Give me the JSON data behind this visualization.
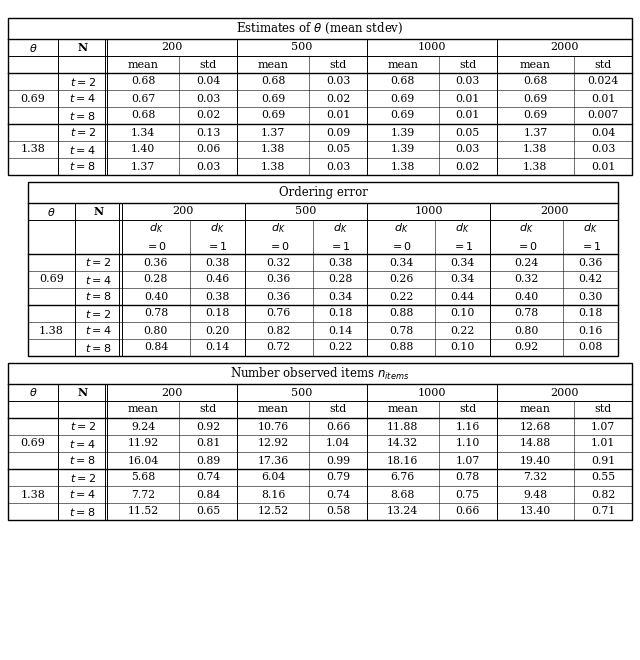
{
  "table1": {
    "title": "Estimates of $\\theta$ (mean stdev)",
    "N_labels": [
      "200",
      "500",
      "1000",
      "2000"
    ],
    "sub_labels": [
      "mean",
      "std"
    ],
    "theta_rows": [
      {
        "theta": "0.69",
        "rows": [
          [
            "$t=2$",
            "0.68",
            "0.04",
            "0.68",
            "0.03",
            "0.68",
            "0.03",
            "0.68",
            "0.024"
          ],
          [
            "$t=4$",
            "0.67",
            "0.03",
            "0.69",
            "0.02",
            "0.69",
            "0.01",
            "0.69",
            "0.01"
          ],
          [
            "$t=8$",
            "0.68",
            "0.02",
            "0.69",
            "0.01",
            "0.69",
            "0.01",
            "0.69",
            "0.007"
          ]
        ]
      },
      {
        "theta": "1.38",
        "rows": [
          [
            "$t=2$",
            "1.34",
            "0.13",
            "1.37",
            "0.09",
            "1.39",
            "0.05",
            "1.37",
            "0.04"
          ],
          [
            "$t=4$",
            "1.40",
            "0.06",
            "1.38",
            "0.05",
            "1.39",
            "0.03",
            "1.38",
            "0.03"
          ],
          [
            "$t=8$",
            "1.37",
            "0.03",
            "1.38",
            "0.03",
            "1.38",
            "0.02",
            "1.38",
            "0.01"
          ]
        ]
      }
    ]
  },
  "table2": {
    "title": "Ordering error",
    "N_labels": [
      "200",
      "500",
      "1000",
      "2000"
    ],
    "sub_labels1": [
      "$d_K$",
      "$d_K$"
    ],
    "sub_labels2": [
      "$=0$",
      "$=1$"
    ],
    "theta_rows": [
      {
        "theta": "0.69",
        "rows": [
          [
            "$t=2$",
            "0.36",
            "0.38",
            "0.32",
            "0.38",
            "0.34",
            "0.34",
            "0.24",
            "0.36"
          ],
          [
            "$t=4$",
            "0.28",
            "0.46",
            "0.36",
            "0.28",
            "0.26",
            "0.34",
            "0.32",
            "0.42"
          ],
          [
            "$t=8$",
            "0.40",
            "0.38",
            "0.36",
            "0.34",
            "0.22",
            "0.44",
            "0.40",
            "0.30"
          ]
        ]
      },
      {
        "theta": "1.38",
        "rows": [
          [
            "$t=2$",
            "0.78",
            "0.18",
            "0.76",
            "0.18",
            "0.88",
            "0.10",
            "0.78",
            "0.18"
          ],
          [
            "$t=4$",
            "0.80",
            "0.20",
            "0.82",
            "0.14",
            "0.78",
            "0.22",
            "0.80",
            "0.16"
          ],
          [
            "$t=8$",
            "0.84",
            "0.14",
            "0.72",
            "0.22",
            "0.88",
            "0.10",
            "0.92",
            "0.08"
          ]
        ]
      }
    ]
  },
  "table3": {
    "title": "Number observed items $n_{items}$",
    "N_labels": [
      "200",
      "500",
      "1000",
      "2000"
    ],
    "sub_labels": [
      "mean",
      "std"
    ],
    "theta_rows": [
      {
        "theta": "0.69",
        "rows": [
          [
            "$t=2$",
            "9.24",
            "0.92",
            "10.76",
            "0.66",
            "11.88",
            "1.16",
            "12.68",
            "1.07"
          ],
          [
            "$t=4$",
            "11.92",
            "0.81",
            "12.92",
            "1.04",
            "14.32",
            "1.10",
            "14.88",
            "1.01"
          ],
          [
            "$t=8$",
            "16.04",
            "0.89",
            "17.36",
            "0.99",
            "18.16",
            "1.07",
            "19.40",
            "0.91"
          ]
        ]
      },
      {
        "theta": "1.38",
        "rows": [
          [
            "$t=2$",
            "5.68",
            "0.74",
            "6.04",
            "0.79",
            "6.76",
            "0.78",
            "7.32",
            "0.55"
          ],
          [
            "$t=4$",
            "7.72",
            "0.84",
            "8.16",
            "0.74",
            "8.68",
            "0.75",
            "9.48",
            "0.82"
          ],
          [
            "$t=8$",
            "11.52",
            "0.65",
            "12.52",
            "0.58",
            "13.24",
            "0.66",
            "13.40",
            "0.71"
          ]
        ]
      }
    ]
  }
}
